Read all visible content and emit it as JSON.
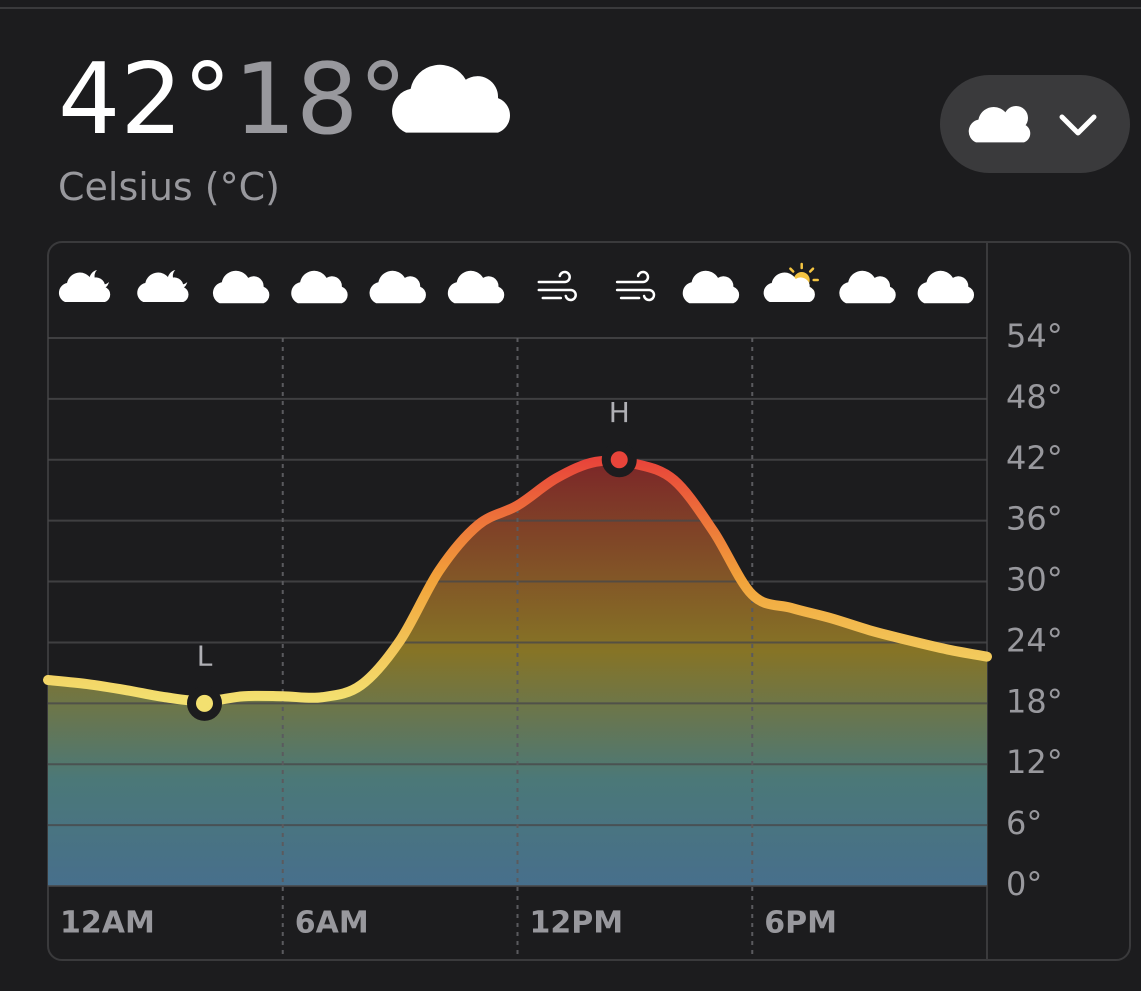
{
  "header": {
    "high": "42°",
    "low": "18°",
    "unit": "Celsius (°C)"
  },
  "chart_data": {
    "type": "area",
    "x": [
      0,
      1,
      2,
      3,
      4,
      5,
      6,
      7,
      8,
      9,
      10,
      11,
      12,
      13,
      14,
      15,
      16,
      17,
      18,
      19,
      20,
      21,
      22,
      23,
      24
    ],
    "values": [
      20.3,
      19.9,
      19.3,
      18.6,
      18.2,
      18.7,
      18.7,
      18.6,
      19.8,
      24.2,
      31.1,
      35.6,
      37.5,
      40.2,
      41.8,
      41.6,
      40,
      35,
      28.7,
      27.4,
      26.4,
      25.2,
      24.2,
      23.3,
      22.6
    ],
    "line_colors": [
      "#f3e070",
      "#f2a33a",
      "#e8443a"
    ],
    "low": {
      "x": 4,
      "value": 18,
      "label": "L"
    },
    "high": {
      "x": 14.6,
      "value": 42,
      "label": "H"
    },
    "xlim": [
      0,
      24
    ],
    "xticks": [
      {
        "value": 0,
        "label": "12AM"
      },
      {
        "value": 6,
        "label": "6AM"
      },
      {
        "value": 12,
        "label": "12PM"
      },
      {
        "value": 18,
        "label": "6PM"
      }
    ],
    "ylim": [
      0,
      54
    ],
    "yticks": [
      {
        "value": 0,
        "label": "0°"
      },
      {
        "value": 6,
        "label": "6°"
      },
      {
        "value": 12,
        "label": "12°"
      },
      {
        "value": 18,
        "label": "18°"
      },
      {
        "value": 24,
        "label": "24°"
      },
      {
        "value": 30,
        "label": "30°"
      },
      {
        "value": 36,
        "label": "36°"
      },
      {
        "value": 42,
        "label": "42°"
      },
      {
        "value": 48,
        "label": "48°"
      },
      {
        "value": 54,
        "label": "54°"
      }
    ],
    "grid": true
  }
}
